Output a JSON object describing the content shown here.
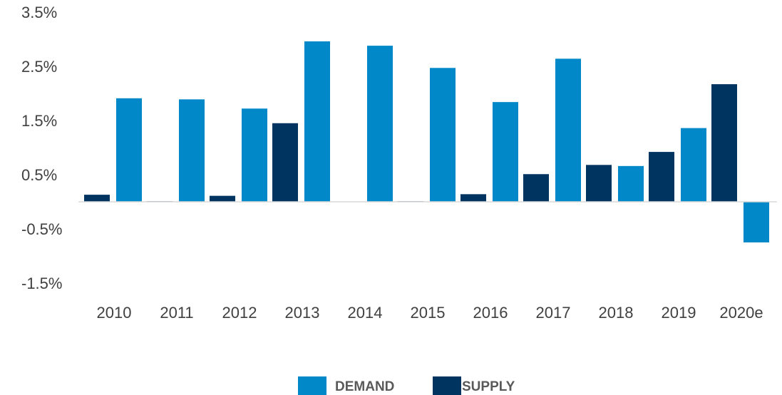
{
  "chart_data": {
    "type": "bar",
    "categories": [
      "2010",
      "2011",
      "2012",
      "2013",
      "2014",
      "2015",
      "2016",
      "2017",
      "2018",
      "2019",
      "2020e"
    ],
    "series": [
      {
        "name": "DEMAND",
        "color": "#0088c8",
        "values": [
          1.91,
          1.89,
          1.72,
          2.96,
          2.88,
          2.47,
          1.84,
          2.64,
          0.66,
          1.36,
          -0.75
        ]
      },
      {
        "name": "SUPPLY",
        "color": "#003460",
        "values": [
          0.13,
          0.01,
          0.11,
          1.45,
          0,
          0.01,
          0.14,
          0.51,
          0.68,
          0.92,
          2.17
        ]
      }
    ],
    "ylim": [
      -1.5,
      3.5
    ],
    "yticks": [
      {
        "value": 3.5,
        "label": "3.5%"
      },
      {
        "value": 2.5,
        "label": "2.5%"
      },
      {
        "value": 1.5,
        "label": "1.5%"
      },
      {
        "value": 0.5,
        "label": "0.5%"
      },
      {
        "value": -0.5,
        "label": "-0.5%"
      },
      {
        "value": -1.5,
        "label": "-1.5%"
      }
    ],
    "grid": false,
    "legend": "bottom"
  }
}
